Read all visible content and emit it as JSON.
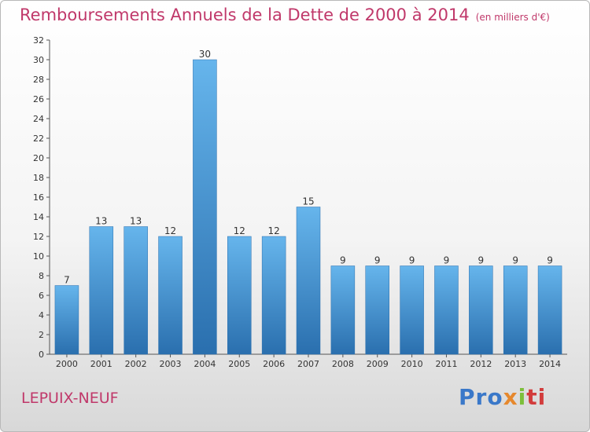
{
  "title": "Remboursements Annuels de la Dette de 2000 à 2014",
  "unit_note": "(en milliers d'€)",
  "location": "LEPUIX-NEUF",
  "logo": {
    "part1": "Pro",
    "part2": "x",
    "part3": "i",
    "part4": "ti"
  },
  "colors": {
    "bar": "#3f93d6",
    "bar_light": "#66b5ec",
    "bar_dark": "#2a6fae",
    "title": "#c0386a"
  },
  "chart_data": {
    "type": "bar",
    "categories": [
      "2000",
      "2001",
      "2002",
      "2003",
      "2004",
      "2005",
      "2006",
      "2007",
      "2008",
      "2009",
      "2010",
      "2011",
      "2012",
      "2013",
      "2014"
    ],
    "values": [
      7,
      13,
      13,
      12,
      30,
      12,
      12,
      15,
      9,
      9,
      9,
      9,
      9,
      9,
      9
    ],
    "ylim": [
      0,
      32
    ],
    "yticks": [
      0,
      2,
      4,
      6,
      8,
      10,
      12,
      14,
      16,
      18,
      20,
      22,
      24,
      26,
      28,
      30,
      32
    ],
    "grid": false,
    "data_labels": true
  }
}
